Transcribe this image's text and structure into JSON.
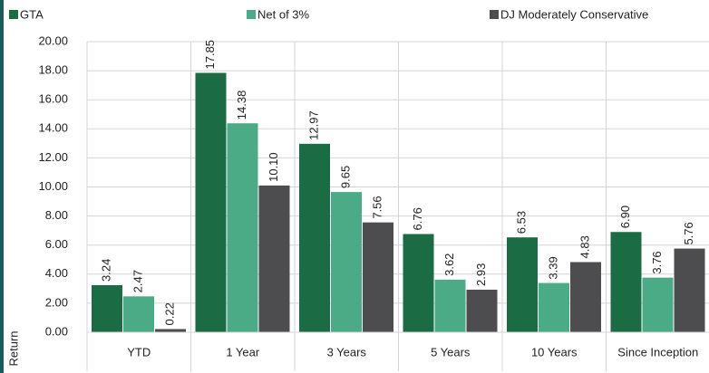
{
  "chart_data": {
    "type": "bar",
    "y_label": "Return",
    "categories": [
      "YTD",
      "1 Year",
      "3 Years",
      "5 Years",
      "10 Years",
      "Since Inception"
    ],
    "series": [
      {
        "name": "GTA",
        "color": "#1b6b45",
        "values": [
          3.24,
          17.85,
          12.97,
          6.76,
          6.53,
          6.9
        ],
        "value_labels": [
          "3.24",
          "17.85",
          "12.97",
          "6.76",
          "6.53",
          "6.90"
        ]
      },
      {
        "name": "Net of 3%",
        "color": "#4aab86",
        "values": [
          2.47,
          14.38,
          9.65,
          3.62,
          3.39,
          3.76
        ],
        "value_labels": [
          "2.47",
          "14.38",
          "9.65",
          "3.62",
          "3.39",
          "3.76"
        ]
      },
      {
        "name": "DJ Moderately Conservative",
        "color": "#4d4d4f",
        "values": [
          0.22,
          10.1,
          7.56,
          2.93,
          4.83,
          5.76
        ],
        "value_labels": [
          "0.22",
          "10.10",
          "7.56",
          "2.93",
          "4.83",
          "5.76"
        ]
      }
    ],
    "ylim": [
      0,
      20
    ],
    "yticks": [
      {
        "value": 0,
        "label": "0.00"
      },
      {
        "value": 2,
        "label": "2.00"
      },
      {
        "value": 4,
        "label": "4.00"
      },
      {
        "value": 6,
        "label": "6.00"
      },
      {
        "value": 8,
        "label": "8.00"
      },
      {
        "value": 10,
        "label": "10.00"
      },
      {
        "value": 12,
        "label": "12.00"
      },
      {
        "value": 14,
        "label": "14.00"
      },
      {
        "value": 16,
        "label": "16.00"
      },
      {
        "value": 18,
        "label": "18.00"
      },
      {
        "value": 20,
        "label": "20.00"
      }
    ],
    "grid": true
  }
}
